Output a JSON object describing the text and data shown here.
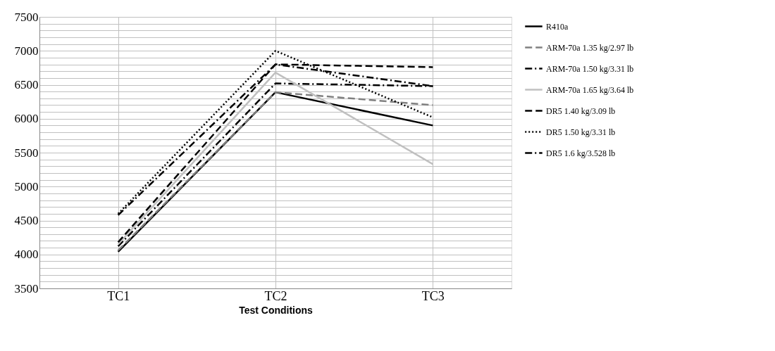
{
  "chart_data": {
    "type": "line",
    "xlabel": "Test Conditions",
    "categories": [
      "TC1",
      "TC2",
      "TC3"
    ],
    "ylim": [
      3500,
      7500
    ],
    "yticks": [
      3500,
      {
        "value": 3600,
        "label": null
      },
      {
        "value": 3700,
        "label": null
      },
      {
        "value": 3800,
        "label": null
      },
      {
        "value": 3900,
        "label": null
      },
      4000,
      {
        "value": 4100,
        "label": null
      },
      {
        "value": 4200,
        "label": null
      },
      {
        "value": 4300,
        "label": null
      },
      {
        "value": 4400,
        "label": null
      },
      4500,
      {
        "value": 4600,
        "label": null
      },
      {
        "value": 4700,
        "label": null
      },
      {
        "value": 4800,
        "label": null
      },
      {
        "value": 4900,
        "label": null
      },
      5000,
      {
        "value": 5100,
        "label": null
      },
      {
        "value": 5200,
        "label": null
      },
      {
        "value": 5300,
        "label": null
      },
      {
        "value": 5400,
        "label": null
      },
      5500,
      {
        "value": 5600,
        "label": null
      },
      {
        "value": 5700,
        "label": null
      },
      {
        "value": 5800,
        "label": null
      },
      {
        "value": 5900,
        "label": null
      },
      6000,
      {
        "value": 6100,
        "label": null
      },
      {
        "value": 6200,
        "label": null
      },
      {
        "value": 6300,
        "label": null
      },
      {
        "value": 6400,
        "label": null
      },
      6500,
      {
        "value": 6600,
        "label": null
      },
      {
        "value": 6700,
        "label": null
      },
      {
        "value": 6800,
        "label": null
      },
      {
        "value": 6900,
        "label": null
      },
      7000,
      {
        "value": 7100,
        "label": null
      },
      {
        "value": 7200,
        "label": null
      },
      {
        "value": 7300,
        "label": null
      },
      {
        "value": 7400,
        "label": null
      },
      7500
    ],
    "grid": true,
    "legend": "right",
    "marker": "none",
    "series": [
      {
        "name": "R410a",
        "color": "#000000",
        "line_style": "solid",
        "values": [
          4040,
          6390,
          5900
        ]
      },
      {
        "name": "ARM-70a 1.35 kg/2.97 lb",
        "color": "#808080",
        "line_style": "dashed",
        "values": [
          4060,
          6390,
          6200
        ]
      },
      {
        "name": "ARM-70a 1.50 kg/3.31 lb",
        "color": "#000000",
        "line_style": "dashdot",
        "values": [
          4120,
          6520,
          6480
        ]
      },
      {
        "name": "ARM-70a 1.65 kg/3.64 lb",
        "color": "#c0c0c0",
        "line_style": "solid",
        "values": [
          4150,
          6680,
          5330
        ]
      },
      {
        "name": "DR5 1.40 kg/3.09 lb",
        "color": "#000000",
        "line_style": "dashed",
        "values": [
          4180,
          6800,
          6760
        ]
      },
      {
        "name": "DR5 1.50 kg/3.31 lb",
        "color": "#000000",
        "line_style": "dotted",
        "values": [
          4600,
          7000,
          6020
        ]
      },
      {
        "name": "DR5 1.6 kg/3.528 lb",
        "color": "#000000",
        "line_style": "dashdot",
        "values": [
          4580,
          6800,
          6480
        ]
      }
    ]
  }
}
